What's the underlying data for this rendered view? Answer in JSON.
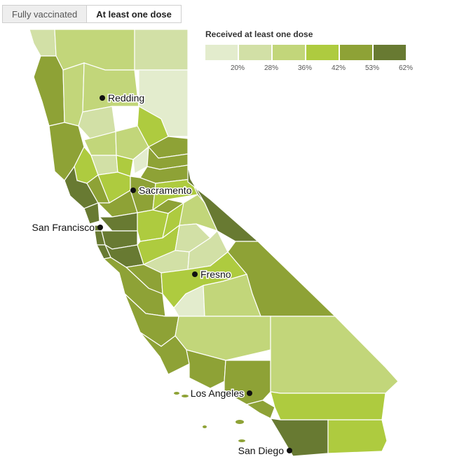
{
  "tabs": [
    {
      "label": "Fully vaccinated",
      "active": false
    },
    {
      "label": "At least one dose",
      "active": true
    }
  ],
  "legend": {
    "title": "Received at least one dose",
    "swatches": [
      "#e3eccd",
      "#d2e0a6",
      "#c2d67a",
      "#aecb3f",
      "#8ea236",
      "#687a32"
    ],
    "ticks": [
      "20%",
      "28%",
      "36%",
      "42%",
      "53%",
      "62%"
    ]
  },
  "map": {
    "cities": [
      {
        "name": "Redding"
      },
      {
        "name": "Sacramento"
      },
      {
        "name": "San Francisco"
      },
      {
        "name": "Fresno"
      },
      {
        "name": "Los Angeles"
      },
      {
        "name": "San Diego"
      }
    ]
  }
}
